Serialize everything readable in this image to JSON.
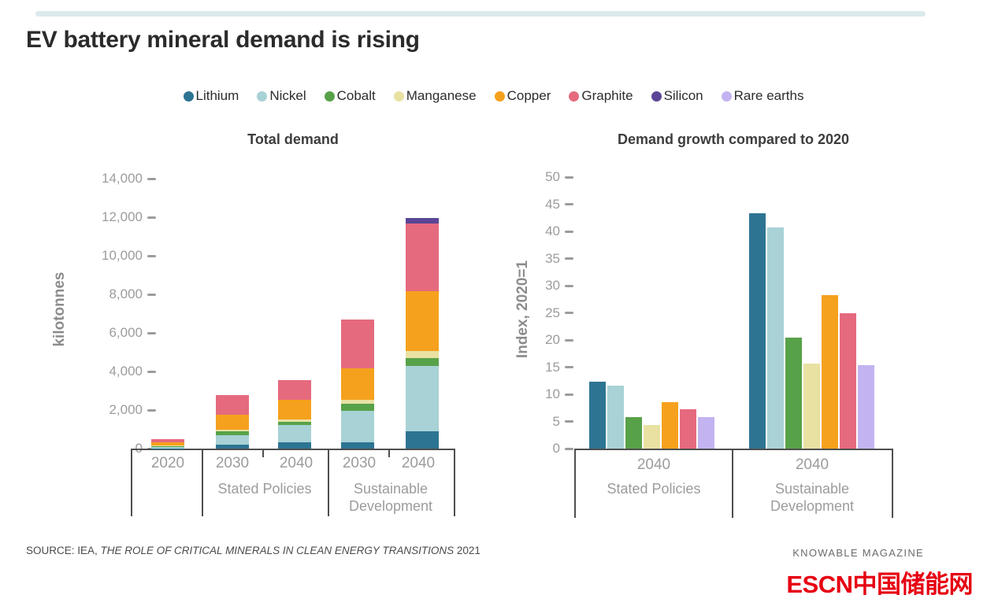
{
  "page": {
    "title": "EV battery mineral demand is rising",
    "source_prefix": "SOURCE: IEA, ",
    "source_title": "THE ROLE OF CRITICAL MINERALS IN CLEAN ENERGY TRANSITIONS",
    "source_suffix": " 2021",
    "credit": "KNOWABLE MAGAZINE",
    "watermark": "ESCN中国储能网"
  },
  "legend": [
    {
      "label": "Lithium",
      "color": "#2d7493"
    },
    {
      "label": "Nickel",
      "color": "#a8d2d6"
    },
    {
      "label": "Cobalt",
      "color": "#57a249"
    },
    {
      "label": "Manganese",
      "color": "#e8e1a2"
    },
    {
      "label": "Copper",
      "color": "#f5a11d"
    },
    {
      "label": "Graphite",
      "color": "#e56a7e"
    },
    {
      "label": "Silicon",
      "color": "#5b4596"
    },
    {
      "label": "Rare earths",
      "color": "#c3b3f1"
    }
  ],
  "chart_data": [
    {
      "type": "bar",
      "subtype": "stacked",
      "title": "Total demand",
      "ylabel": "kilotonnes",
      "ylim": [
        0,
        14000
      ],
      "grid": false,
      "yticks": [
        {
          "value": 0,
          "label": "0"
        },
        {
          "value": 2000,
          "label": "2,000"
        },
        {
          "value": 4000,
          "label": "4,000"
        },
        {
          "value": 6000,
          "label": "6,000"
        },
        {
          "value": 8000,
          "label": "8,000"
        },
        {
          "value": 10000,
          "label": "10,000"
        },
        {
          "value": 12000,
          "label": "12,000"
        },
        {
          "value": 14000,
          "label": "14,000"
        }
      ],
      "stack_order": [
        "Lithium",
        "Nickel",
        "Cobalt",
        "Manganese",
        "Copper",
        "Graphite",
        "Silicon"
      ],
      "groups": [
        {
          "scenario": "",
          "years": [
            "2020"
          ]
        },
        {
          "scenario": "Stated Policies",
          "years": [
            "2030",
            "2040"
          ]
        },
        {
          "scenario": "Sustainable Development",
          "years": [
            "2030",
            "2040"
          ]
        }
      ],
      "bars": [
        {
          "scenario": "2020",
          "year": "2020",
          "values": {
            "Lithium": 20,
            "Nickel": 80,
            "Cobalt": 30,
            "Manganese": 30,
            "Copper": 160,
            "Graphite": 160,
            "Silicon": 0
          }
        },
        {
          "scenario": "Stated Policies",
          "year": "2030",
          "values": {
            "Lithium": 200,
            "Nickel": 490,
            "Cobalt": 200,
            "Manganese": 80,
            "Copper": 780,
            "Graphite": 1020,
            "Silicon": 0
          }
        },
        {
          "scenario": "Stated Policies",
          "year": "2040",
          "values": {
            "Lithium": 330,
            "Nickel": 900,
            "Cobalt": 160,
            "Manganese": 120,
            "Copper": 1030,
            "Graphite": 1020,
            "Silicon": 0
          }
        },
        {
          "scenario": "Sustainable Development",
          "year": "2030",
          "values": {
            "Lithium": 330,
            "Nickel": 1630,
            "Cobalt": 370,
            "Manganese": 200,
            "Copper": 1630,
            "Graphite": 2530,
            "Silicon": 0
          }
        },
        {
          "scenario": "Sustainable Development",
          "year": "2040",
          "values": {
            "Lithium": 900,
            "Nickel": 3390,
            "Cobalt": 410,
            "Manganese": 370,
            "Copper": 3100,
            "Graphite": 3510,
            "Silicon": 290
          }
        }
      ]
    },
    {
      "type": "bar",
      "subtype": "grouped",
      "title": "Demand growth compared to 2020",
      "ylabel": "Index, 2020=1",
      "ylim": [
        0,
        50
      ],
      "grid": false,
      "yticks": [
        {
          "value": 0,
          "label": "0"
        },
        {
          "value": 5,
          "label": "5"
        },
        {
          "value": 10,
          "label": "10"
        },
        {
          "value": 15,
          "label": "15"
        },
        {
          "value": 20,
          "label": "20"
        },
        {
          "value": 25,
          "label": "25"
        },
        {
          "value": 30,
          "label": "30"
        },
        {
          "value": 35,
          "label": "35"
        },
        {
          "value": 40,
          "label": "40"
        },
        {
          "value": 45,
          "label": "45"
        },
        {
          "value": 50,
          "label": "50"
        }
      ],
      "series_order": [
        "Lithium",
        "Nickel",
        "Cobalt",
        "Manganese",
        "Copper",
        "Graphite",
        "Rare earths"
      ],
      "groups": [
        {
          "scenario": "Stated Policies",
          "year": "2040",
          "values": {
            "Lithium": 12.3,
            "Nickel": 11.6,
            "Cobalt": 5.8,
            "Manganese": 4.3,
            "Copper": 8.5,
            "Graphite": 7.2,
            "Rare earths": 5.8
          }
        },
        {
          "scenario": "Sustainable Development",
          "year": "2040",
          "values": {
            "Lithium": 43.3,
            "Nickel": 40.7,
            "Cobalt": 20.5,
            "Manganese": 15.7,
            "Copper": 28.2,
            "Graphite": 25.0,
            "Rare earths": 15.3
          }
        }
      ]
    }
  ]
}
